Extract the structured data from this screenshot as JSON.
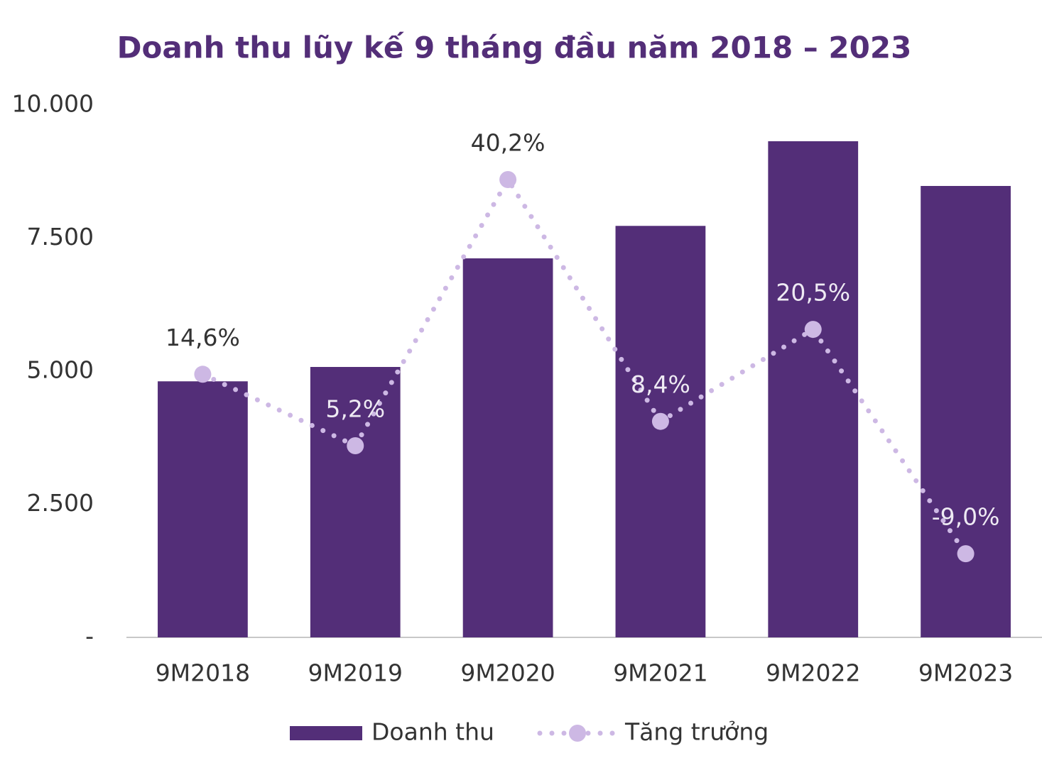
{
  "chart_data": {
    "type": "bar",
    "title": "Doanh thu lũy kế 9 tháng đầu năm 2018 – 2023",
    "categories": [
      "9M2018",
      "9M2019",
      "9M2020",
      "9M2021",
      "9M2022",
      "9M2023"
    ],
    "series": [
      {
        "name": "Doanh thu",
        "type": "bar",
        "color": "#532e78",
        "values": [
          4810,
          5080,
          7120,
          7730,
          9320,
          8480
        ]
      },
      {
        "name": "Tăng trưởng",
        "type": "line",
        "axis": "y2",
        "color": "#cdb8e4",
        "values": [
          14.6,
          5.2,
          40.2,
          8.4,
          20.5,
          -9.0
        ],
        "value_labels": [
          "14,6%",
          "5,2%",
          "40,2%",
          "8,4%",
          "20,5%",
          "-9,0%"
        ]
      }
    ],
    "ylim": [
      0,
      10000
    ],
    "yticks": [
      {
        "value": 0,
        "label": "-"
      },
      {
        "value": 2500,
        "label": "2.500"
      },
      {
        "value": 5000,
        "label": "5.000"
      },
      {
        "value": 7500,
        "label": "7.500"
      },
      {
        "value": 10000,
        "label": "10.000"
      }
    ],
    "y2lim": [
      -20,
      50
    ],
    "legend": "bottom"
  }
}
